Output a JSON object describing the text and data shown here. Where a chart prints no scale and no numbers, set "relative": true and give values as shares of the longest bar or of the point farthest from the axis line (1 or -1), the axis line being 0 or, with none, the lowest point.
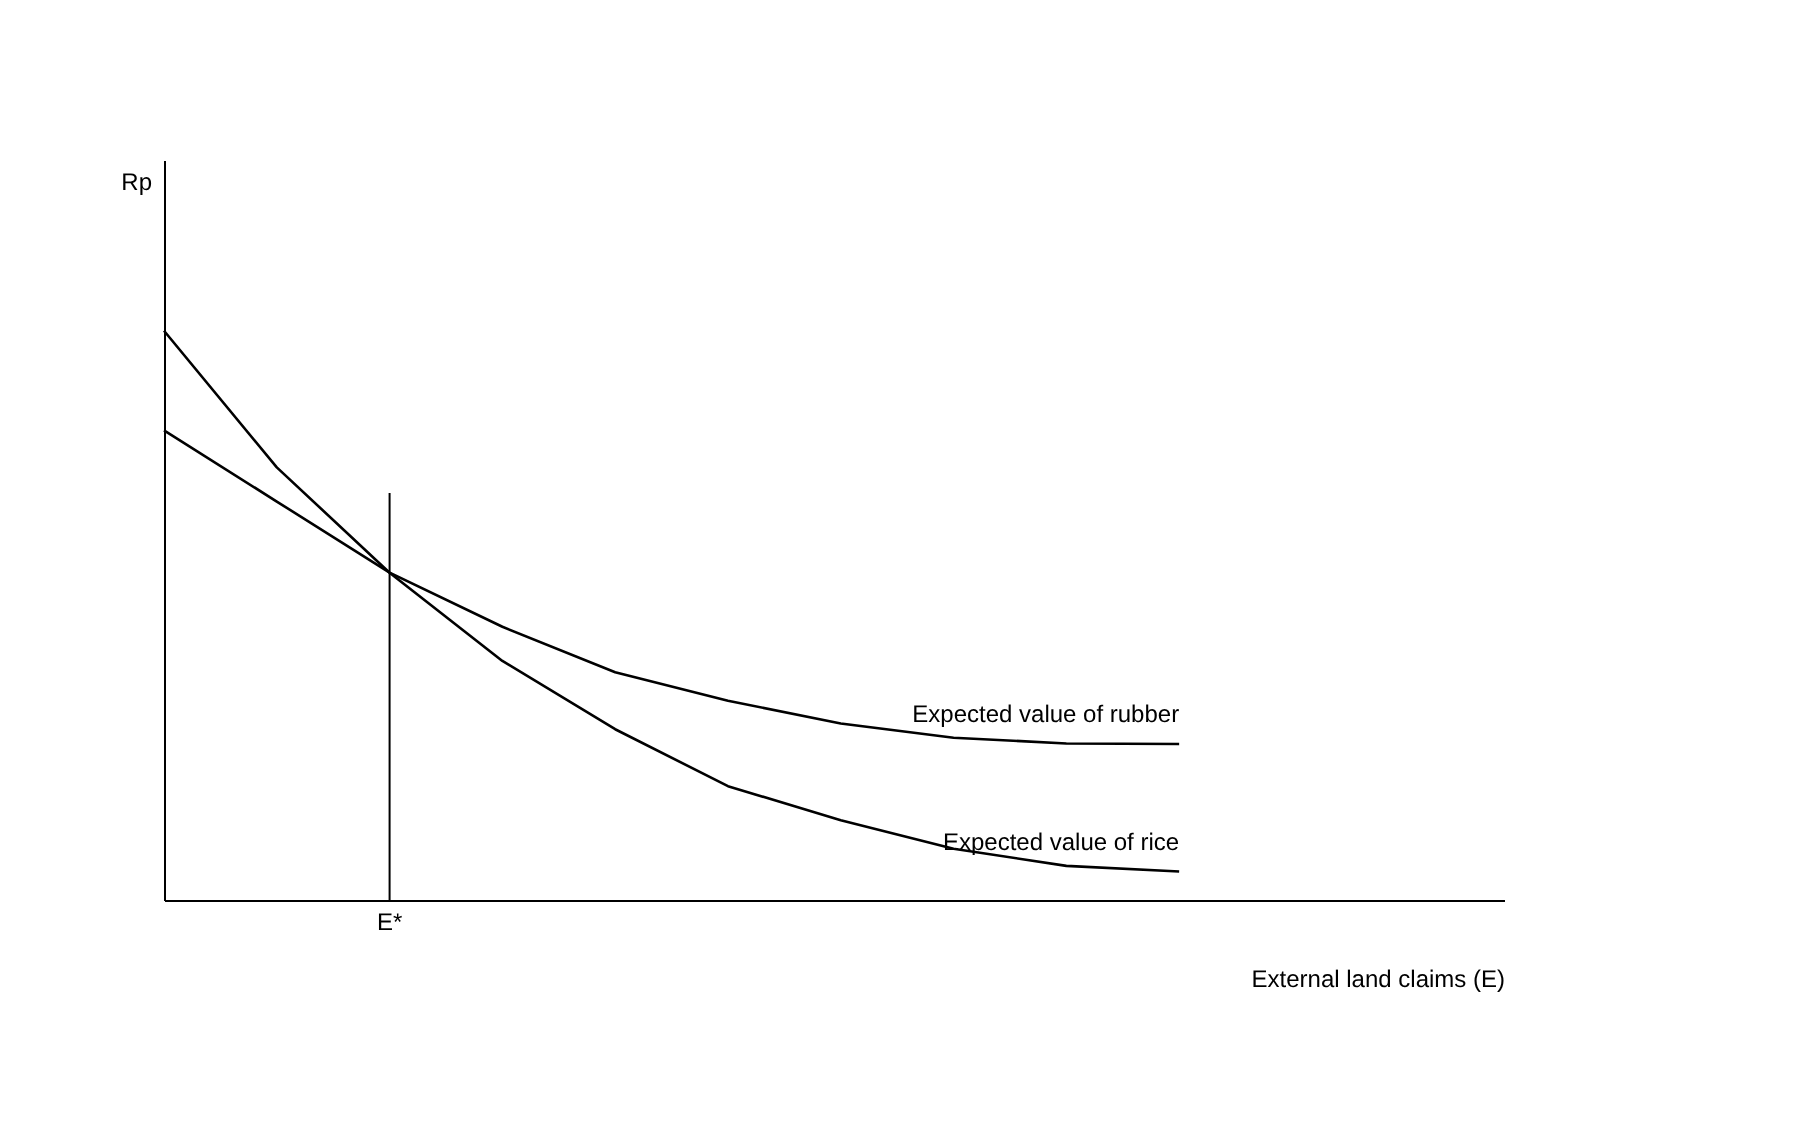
{
  "chart_data": {
    "type": "line",
    "relative": true,
    "xlabel": "External land claims (E)",
    "categories": [
      null,
      null,
      null,
      null,
      null,
      null,
      null,
      null,
      null,
      null
    ],
    "series": [
      {
        "name": "Expected value of rubber",
        "color": "#000000",
        "values": [
          0.825,
          0.7,
          0.575,
          0.48,
          0.4,
          0.35,
          0.31,
          0.285,
          0.275,
          0.274
        ]
      },
      {
        "name": "Expected value of rice",
        "color": "#000000",
        "values": [
          1,
          0.76,
          0.575,
          0.42,
          0.3,
          0.2,
          0.14,
          0.09,
          0.06,
          0.05
        ]
      }
    ],
    "annotations": [
      "Rp",
      "E*"
    ],
    "legend": false,
    "grid": false,
    "marker": "none",
    "line_style": "solid"
  }
}
